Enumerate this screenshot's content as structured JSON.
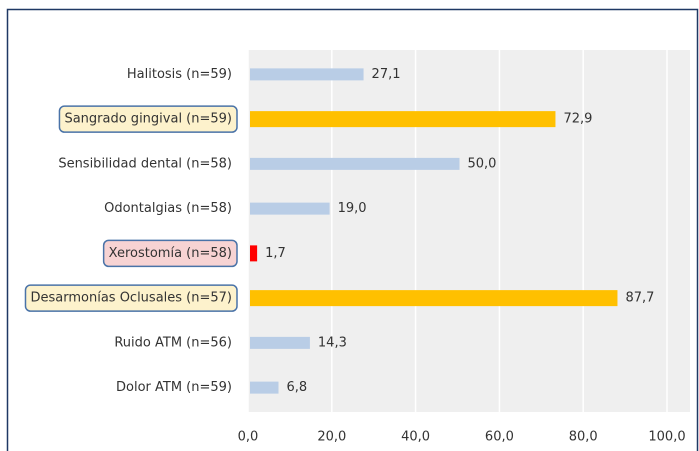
{
  "chart_data": {
    "type": "barh",
    "categories": [
      "Halitosis (n=59)",
      "Sangrado gingival (n=59)",
      "Sensibilidad dental (n=58)",
      "Odontalgias (n=58)",
      "Xerostomía (n=58)",
      "Desarmonías Oclusales (n=57)",
      "Ruido ATM (n=56)",
      "Dolor ATM (n=59)"
    ],
    "values": [
      27.1,
      72.9,
      50.0,
      19.0,
      1.7,
      87.7,
      14.3,
      6.8
    ],
    "value_labels": [
      "27,1",
      "72,9",
      "50,0",
      "19,0",
      "1,7",
      "87,7",
      "14,3",
      "6,8"
    ],
    "colors": [
      "#b9cde6",
      "#ffc000",
      "#b9cde6",
      "#b9cde6",
      "#ff0000",
      "#ffc000",
      "#b9cde6",
      "#b9cde6"
    ],
    "xlim": [
      0,
      100
    ],
    "xticks": [
      {
        "value": 0,
        "label": "0,0"
      },
      {
        "value": 20,
        "label": "20,0"
      },
      {
        "value": 40,
        "label": "40,0"
      },
      {
        "value": 60,
        "label": "60,0"
      },
      {
        "value": 80,
        "label": "80,0"
      },
      {
        "value": 100,
        "label": "100,0"
      }
    ],
    "grid": true
  }
}
